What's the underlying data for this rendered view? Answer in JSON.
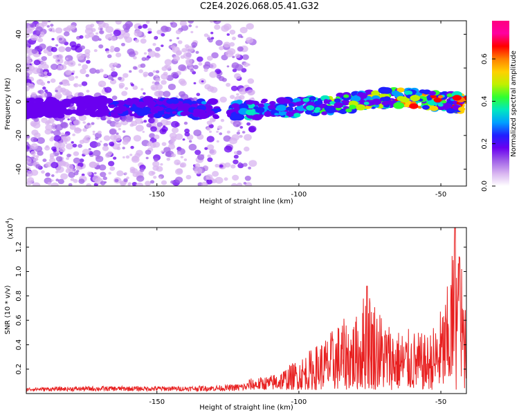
{
  "title": "C2E4.2026.068.05.41.G32",
  "chart_data": [
    {
      "type": "heatmap",
      "name": "spectrogram",
      "xlabel": "Height of straight line (km)",
      "ylabel": "Frequency (Hz)",
      "xlim": [
        -196,
        -41
      ],
      "ylim": [
        -50,
        48
      ],
      "xticks": [
        -150,
        -100,
        -50
      ],
      "xtick_labels": [
        "-150",
        "-100",
        "-50"
      ],
      "yticks": [
        40,
        20,
        0,
        -20,
        -40
      ],
      "ytick_labels": [
        "40",
        "20",
        "0",
        "-20",
        "-40"
      ],
      "band_center_x": [
        -195,
        -180,
        -160,
        -140,
        -120,
        -110,
        -100,
        -90,
        -80,
        -70,
        -60,
        -50,
        -41
      ],
      "band_center_y": [
        -4,
        -3,
        -3,
        -4,
        -5,
        -4,
        -3,
        -2,
        0,
        2,
        2,
        0,
        -1
      ],
      "colorbar": {
        "label": "Normalized spectral amplitude",
        "range": [
          0.0,
          0.78
        ],
        "ticks": [
          0.0,
          0.2,
          0.4,
          0.6
        ],
        "tick_labels": [
          "0.0",
          "0.2",
          "0.4",
          "0.6"
        ],
        "colors": [
          "#ffffff",
          "#d8b4f0",
          "#a060e8",
          "#6a00f0",
          "#2020ff",
          "#00a0ff",
          "#00e8c0",
          "#30ff30",
          "#c0f000",
          "#ffd000",
          "#ff8000",
          "#ff0000",
          "#ff00a0",
          "#ff0080"
        ]
      }
    },
    {
      "type": "line",
      "name": "snr",
      "xlabel": "Height of straight line (km)",
      "ylabel": "SNR (10 * v/v)",
      "scale_label": "(x10",
      "scale_exponent": "4",
      "scale_close": ")",
      "xlim": [
        -196,
        -41
      ],
      "ylim": [
        0,
        1.36
      ],
      "xticks": [
        -150,
        -100,
        -50
      ],
      "xtick_labels": [
        "-150",
        "-100",
        "-50"
      ],
      "yticks": [
        0.2,
        0.4,
        0.6,
        0.8,
        1.0,
        1.2
      ],
      "ytick_labels": [
        "0.2",
        "0.4",
        "0.6",
        "0.8",
        "1.0",
        "1.2"
      ],
      "envelope_x": [
        -196,
        -170,
        -140,
        -125,
        -118,
        -110,
        -105,
        -100,
        -95,
        -90,
        -85,
        -80,
        -76,
        -70,
        -65,
        -60,
        -55,
        -52,
        -48,
        -45,
        -43,
        -41
      ],
      "envelope_y": [
        0.05,
        0.06,
        0.06,
        0.07,
        0.09,
        0.12,
        0.18,
        0.26,
        0.35,
        0.45,
        0.58,
        0.6,
        0.88,
        0.6,
        0.5,
        0.5,
        0.45,
        0.55,
        0.8,
        1.36,
        1.1,
        0.8
      ],
      "peaks": [
        {
          "x": -76,
          "y": 0.88
        },
        {
          "x": -45,
          "y": 1.36
        },
        {
          "x": -43.5,
          "y": 1.12
        }
      ],
      "color": "#e82020"
    }
  ]
}
